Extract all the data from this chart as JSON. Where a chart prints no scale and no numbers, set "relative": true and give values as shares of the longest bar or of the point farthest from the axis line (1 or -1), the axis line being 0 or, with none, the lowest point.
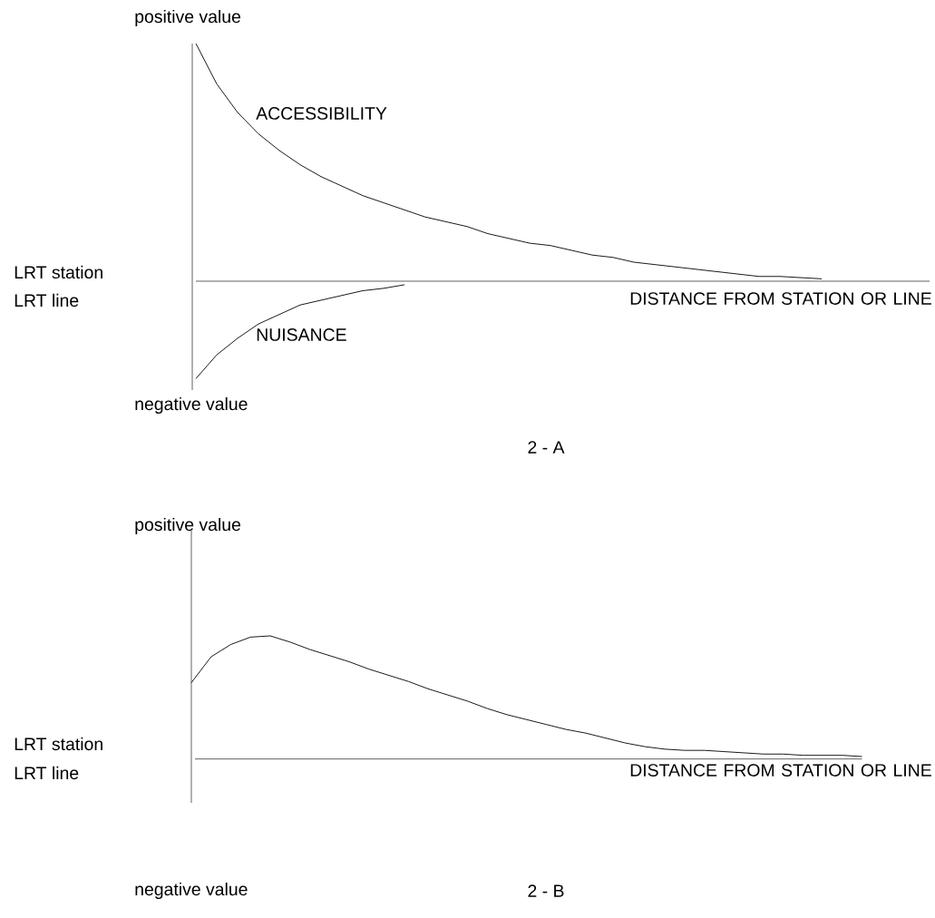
{
  "chart_data": [
    {
      "type": "line",
      "relative": true,
      "title": "2 - A",
      "xlabel": "DISTANCE FROM STATION OR LINE",
      "annotations": [
        "positive value",
        "negative value",
        "LRT station",
        "LRT line"
      ],
      "categories": [
        null,
        null,
        null,
        null,
        null,
        null,
        null,
        null,
        null,
        null,
        null,
        null,
        null,
        null,
        null,
        null,
        null,
        null,
        null,
        null,
        null,
        null,
        null,
        null,
        null,
        null,
        null,
        null,
        null,
        null,
        null,
        null,
        null,
        null,
        null,
        null
      ],
      "series": [
        {
          "name": "ACCESSIBILITY",
          "color": "#000000",
          "values": [
            1.0,
            0.83,
            0.71,
            0.62,
            0.55,
            0.49,
            0.44,
            0.4,
            0.36,
            0.33,
            0.3,
            0.27,
            0.25,
            0.23,
            0.2,
            0.18,
            0.16,
            0.15,
            0.13,
            0.11,
            0.1,
            0.08,
            0.07,
            0.06,
            0.05,
            0.04,
            0.03,
            0.02,
            0.02,
            0.015,
            0.01,
            null,
            null,
            null,
            null,
            null
          ]
        },
        {
          "name": "NUISANCE",
          "color": "#000000",
          "values": [
            -0.41,
            -0.31,
            -0.24,
            -0.18,
            -0.14,
            -0.1,
            -0.08,
            -0.06,
            -0.04,
            -0.03,
            -0.015,
            null,
            null,
            null,
            null,
            null,
            null,
            null,
            null,
            null,
            null,
            null,
            null,
            null,
            null,
            null,
            null,
            null,
            null,
            null,
            null,
            null,
            null,
            null,
            null,
            null
          ]
        }
      ]
    },
    {
      "type": "line",
      "relative": true,
      "title": "2 - B",
      "xlabel": "DISTANCE FROM STATION OR LINE",
      "annotations": [
        "positive value",
        "negative value",
        "LRT station",
        "LRT line"
      ],
      "categories": [
        null,
        null,
        null,
        null,
        null,
        null,
        null,
        null,
        null,
        null,
        null,
        null,
        null,
        null,
        null,
        null,
        null,
        null,
        null,
        null,
        null,
        null,
        null,
        null,
        null,
        null,
        null,
        null,
        null,
        null,
        null,
        null,
        null,
        null,
        null
      ],
      "series": [
        {
          "color": "#000000",
          "values": [
            0.62,
            0.83,
            0.93,
            0.99,
            1.0,
            0.95,
            0.89,
            0.84,
            0.79,
            0.73,
            0.68,
            0.63,
            0.57,
            0.52,
            0.47,
            0.41,
            0.36,
            0.32,
            0.28,
            0.24,
            0.21,
            0.17,
            0.13,
            0.1,
            0.08,
            0.07,
            0.07,
            0.06,
            0.05,
            0.04,
            0.04,
            0.03,
            0.03,
            0.03,
            0.02
          ]
        }
      ]
    }
  ]
}
